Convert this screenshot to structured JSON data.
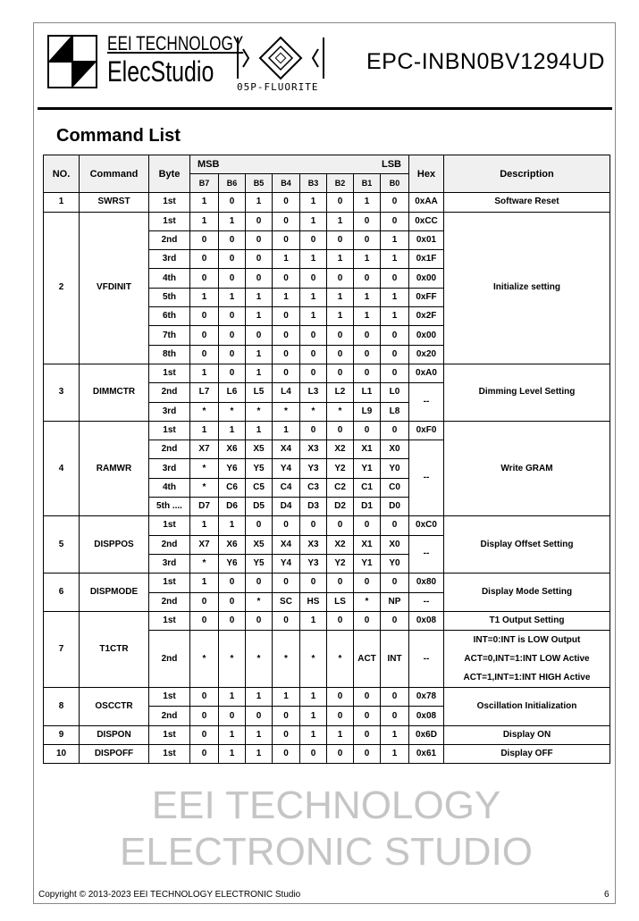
{
  "header": {
    "brand_line1": "EEI TECHNOLOGY",
    "brand_line2": "ElecStudio",
    "series_logo": "05P-FLUORITE",
    "model": "EPC-INBN0BV1294UD"
  },
  "title": "Command List",
  "table": {
    "headers": {
      "no": "NO.",
      "command": "Command",
      "byte": "Byte",
      "msb": "MSB",
      "lsb": "LSB",
      "bits": [
        "B7",
        "B6",
        "B5",
        "B4",
        "B3",
        "B2",
        "B1",
        "B0"
      ],
      "hex": "Hex",
      "description": "Description"
    },
    "groups": [
      {
        "no": "1",
        "command": "SWRST",
        "rows": [
          {
            "byte": "1st",
            "bits": [
              "1",
              "0",
              "1",
              "0",
              "1",
              "0",
              "1",
              "0"
            ],
            "hex": "0xAA",
            "desc": "Software Reset"
          }
        ]
      },
      {
        "no": "2",
        "command": "VFDINIT",
        "rows": [
          {
            "byte": "1st",
            "bits": [
              "1",
              "1",
              "0",
              "0",
              "1",
              "1",
              "0",
              "0"
            ],
            "hex": "0xCC",
            "desc": "Initialize setting",
            "desc_span": 8
          },
          {
            "byte": "2nd",
            "bits": [
              "0",
              "0",
              "0",
              "0",
              "0",
              "0",
              "0",
              "1"
            ],
            "hex": "0x01"
          },
          {
            "byte": "3rd",
            "bits": [
              "0",
              "0",
              "0",
              "1",
              "1",
              "1",
              "1",
              "1"
            ],
            "hex": "0x1F"
          },
          {
            "byte": "4th",
            "bits": [
              "0",
              "0",
              "0",
              "0",
              "0",
              "0",
              "0",
              "0"
            ],
            "hex": "0x00"
          },
          {
            "byte": "5th",
            "bits": [
              "1",
              "1",
              "1",
              "1",
              "1",
              "1",
              "1",
              "1"
            ],
            "hex": "0xFF"
          },
          {
            "byte": "6th",
            "bits": [
              "0",
              "0",
              "1",
              "0",
              "1",
              "1",
              "1",
              "1"
            ],
            "hex": "0x2F"
          },
          {
            "byte": "7th",
            "bits": [
              "0",
              "0",
              "0",
              "0",
              "0",
              "0",
              "0",
              "0"
            ],
            "hex": "0x00"
          },
          {
            "byte": "8th",
            "bits": [
              "0",
              "0",
              "1",
              "0",
              "0",
              "0",
              "0",
              "0"
            ],
            "hex": "0x20"
          }
        ]
      },
      {
        "no": "3",
        "command": "DIMMCTR",
        "rows": [
          {
            "byte": "1st",
            "bits": [
              "1",
              "0",
              "1",
              "0",
              "0",
              "0",
              "0",
              "0"
            ],
            "hex": "0xA0",
            "desc": "Dimming Level Setting",
            "desc_span": 3
          },
          {
            "byte": "2nd",
            "bits": [
              "L7",
              "L6",
              "L5",
              "L4",
              "L3",
              "L2",
              "L1",
              "L0"
            ],
            "hex": "--",
            "hex_span": 2
          },
          {
            "byte": "3rd",
            "bits": [
              "*",
              "*",
              "*",
              "*",
              "*",
              "*",
              "L9",
              "L8"
            ]
          }
        ]
      },
      {
        "no": "4",
        "command": "RAMWR",
        "rows": [
          {
            "byte": "1st",
            "bits": [
              "1",
              "1",
              "1",
              "1",
              "0",
              "0",
              "0",
              "0"
            ],
            "hex": "0xF0",
            "desc": "Write GRAM",
            "desc_span": 5
          },
          {
            "byte": "2nd",
            "bits": [
              "X7",
              "X6",
              "X5",
              "X4",
              "X3",
              "X2",
              "X1",
              "X0"
            ],
            "hex": "--",
            "hex_span": 4
          },
          {
            "byte": "3rd",
            "bits": [
              "*",
              "Y6",
              "Y5",
              "Y4",
              "Y3",
              "Y2",
              "Y1",
              "Y0"
            ]
          },
          {
            "byte": "4th",
            "bits": [
              "*",
              "C6",
              "C5",
              "C4",
              "C3",
              "C2",
              "C1",
              "C0"
            ]
          },
          {
            "byte": "5th ....",
            "bits": [
              "D7",
              "D6",
              "D5",
              "D4",
              "D3",
              "D2",
              "D1",
              "D0"
            ]
          }
        ]
      },
      {
        "no": "5",
        "command": "DISPPOS",
        "rows": [
          {
            "byte": "1st",
            "bits": [
              "1",
              "1",
              "0",
              "0",
              "0",
              "0",
              "0",
              "0"
            ],
            "hex": "0xC0",
            "desc": "Display Offset Setting",
            "desc_span": 3
          },
          {
            "byte": "2nd",
            "bits": [
              "X7",
              "X6",
              "X5",
              "X4",
              "X3",
              "X2",
              "X1",
              "X0"
            ],
            "hex": "--",
            "hex_span": 2
          },
          {
            "byte": "3rd",
            "bits": [
              "*",
              "Y6",
              "Y5",
              "Y4",
              "Y3",
              "Y2",
              "Y1",
              "Y0"
            ]
          }
        ]
      },
      {
        "no": "6",
        "command": "DISPMODE",
        "rows": [
          {
            "byte": "1st",
            "bits": [
              "1",
              "0",
              "0",
              "0",
              "0",
              "0",
              "0",
              "0"
            ],
            "hex": "0x80",
            "desc": "Display Mode Setting",
            "desc_span": 2
          },
          {
            "byte": "2nd",
            "bits": [
              "0",
              "0",
              "*",
              "SC",
              "HS",
              "LS",
              "*",
              "NP"
            ],
            "hex": "--"
          }
        ]
      },
      {
        "no": "7",
        "command": "T1CTR",
        "rows": [
          {
            "byte": "1st",
            "bits": [
              "0",
              "0",
              "0",
              "0",
              "1",
              "0",
              "0",
              "0"
            ],
            "hex": "0x08",
            "desc": "T1 Output Setting"
          },
          {
            "byte": "2nd",
            "bits": [
              "*",
              "*",
              "*",
              "*",
              "*",
              "*",
              "ACT",
              "INT"
            ],
            "hex": "--",
            "tall": true,
            "desc_lines": [
              "INT=0:INT is LOW Output",
              "ACT=0,INT=1:INT LOW Active",
              "ACT=1,INT=1:INT HIGH Active"
            ]
          }
        ]
      },
      {
        "no": "8",
        "command": "OSCCTR",
        "rows": [
          {
            "byte": "1st",
            "bits": [
              "0",
              "1",
              "1",
              "1",
              "1",
              "0",
              "0",
              "0"
            ],
            "hex": "0x78",
            "desc": "Oscillation Initialization",
            "desc_span": 2
          },
          {
            "byte": "2nd",
            "bits": [
              "0",
              "0",
              "0",
              "0",
              "1",
              "0",
              "0",
              "0"
            ],
            "hex": "0x08"
          }
        ]
      },
      {
        "no": "9",
        "command": "DISPON",
        "rows": [
          {
            "byte": "1st",
            "bits": [
              "0",
              "1",
              "1",
              "0",
              "1",
              "1",
              "0",
              "1"
            ],
            "hex": "0x6D",
            "desc": "Display ON"
          }
        ]
      },
      {
        "no": "10",
        "command": "DISPOFF",
        "rows": [
          {
            "byte": "1st",
            "bits": [
              "0",
              "1",
              "1",
              "0",
              "0",
              "0",
              "0",
              "1"
            ],
            "hex": "0x61",
            "desc": "Display OFF"
          }
        ]
      }
    ]
  },
  "watermark": "EEI TECHNOLOGY ELECTRONIC STUDIO",
  "footer": {
    "copyright": "Copyright © 2013-2023 EEI TECHNOLOGY ELECTRONIC Studio",
    "page": "6"
  }
}
